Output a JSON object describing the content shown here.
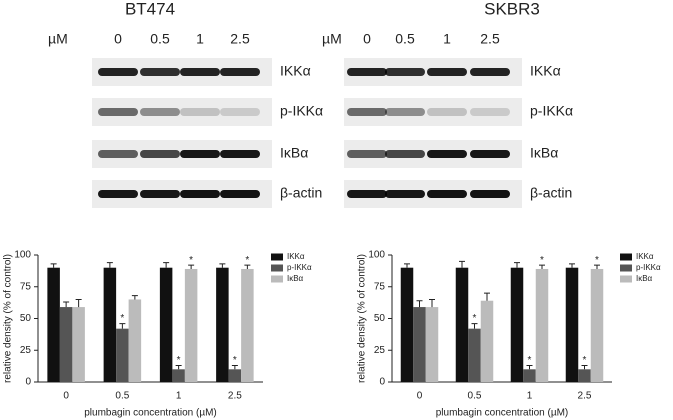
{
  "blots": [
    {
      "title": "BT474",
      "unit": "µM",
      "concentrations": [
        "0",
        "0.5",
        "1",
        "2.5"
      ],
      "proteins": [
        "IKKα",
        "p-IKKα",
        "IκBα",
        "β-actin"
      ]
    },
    {
      "title": "SKBR3",
      "unit": "µM",
      "concentrations": [
        "0",
        "0.5",
        "1",
        "2.5"
      ],
      "proteins": [
        "IKKα",
        "p-IKKα",
        "IκBα",
        "β-actin"
      ]
    }
  ],
  "chart_data": [
    {
      "type": "bar",
      "ylabel": "relative density (% of control)",
      "xlabel": "plumbagin concentration (µM)",
      "categories": [
        "0",
        "0.5",
        "1",
        "2.5"
      ],
      "ylim": [
        0,
        100
      ],
      "yticks": [
        0,
        25,
        50,
        75,
        100
      ],
      "legend": "right",
      "series": [
        {
          "name": "IKKα",
          "color": "#111111",
          "values": [
            90,
            90,
            90,
            90
          ],
          "errors": [
            3,
            4,
            4,
            3
          ],
          "annotations": [
            null,
            null,
            null,
            null
          ]
        },
        {
          "name": "p-IKKα",
          "color": "#555555",
          "values": [
            59,
            42,
            10,
            10
          ],
          "errors": [
            4,
            4,
            3,
            3
          ],
          "annotations": [
            null,
            "*",
            "*",
            "*"
          ]
        },
        {
          "name": "IκBα",
          "color": "#bbbbbb",
          "values": [
            59,
            65,
            89,
            89
          ],
          "errors": [
            6,
            3,
            3,
            3
          ],
          "annotations": [
            null,
            null,
            "*",
            "*"
          ]
        }
      ]
    },
    {
      "type": "bar",
      "ylabel": "relative density (% of control)",
      "xlabel": "plumbagin concentration (µM)",
      "categories": [
        "0",
        "0.5",
        "1",
        "2.5"
      ],
      "ylim": [
        0,
        100
      ],
      "yticks": [
        0,
        25,
        50,
        75,
        100
      ],
      "legend": "right",
      "series": [
        {
          "name": "IKKα",
          "color": "#111111",
          "values": [
            90,
            90,
            90,
            90
          ],
          "errors": [
            3,
            5,
            4,
            3
          ],
          "annotations": [
            null,
            null,
            null,
            null
          ]
        },
        {
          "name": "p-IKKα",
          "color": "#555555",
          "values": [
            59,
            42,
            10,
            10
          ],
          "errors": [
            5,
            4,
            3,
            3
          ],
          "annotations": [
            null,
            "*",
            "*",
            "*"
          ]
        },
        {
          "name": "IκBα",
          "color": "#bbbbbb",
          "values": [
            59,
            64,
            89,
            89
          ],
          "errors": [
            6,
            6,
            3,
            3
          ],
          "annotations": [
            null,
            null,
            "*",
            "*"
          ]
        }
      ]
    }
  ]
}
